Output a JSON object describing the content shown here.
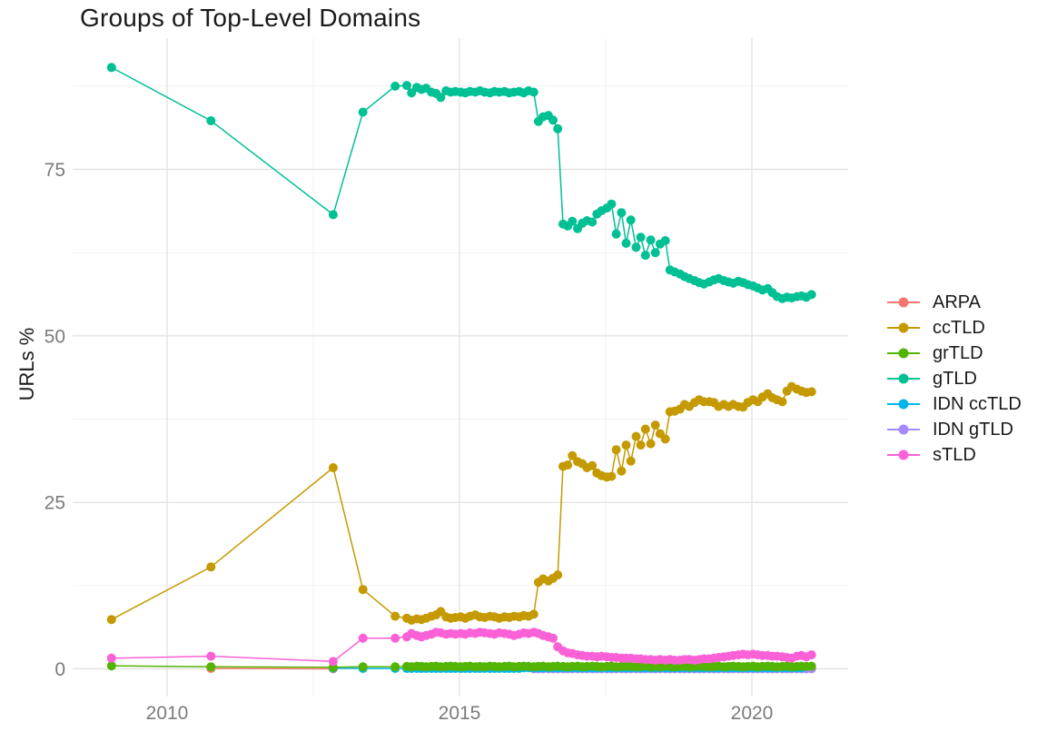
{
  "chart_data": {
    "type": "line",
    "title": "Groups of Top-Level Domains",
    "ylabel": "URLs %",
    "xlabel": "",
    "legend_position": "right",
    "grid": true,
    "background_color": "#FFFFFF",
    "major_grid_color": "#E3E3E3",
    "minor_grid_color": "#F1F1F1",
    "tick_label_color": "#7B7B7B",
    "text_color": "#1A1A1A",
    "x_axis": {
      "ticks": [
        2010,
        2015,
        2020
      ],
      "minor_ticks": [
        2012.5,
        2017.5
      ],
      "range": [
        2008.5,
        2021.6
      ]
    },
    "y_axis": {
      "ticks": [
        0,
        25,
        50,
        75
      ],
      "minor_ticks": [
        12.5,
        37.5,
        62.5,
        87.5
      ],
      "range": [
        -4.5,
        94.8
      ]
    },
    "x": [
      2009.05,
      2010.75,
      2012.84,
      2013.35,
      2013.9,
      2014.1,
      2014.18,
      2014.27,
      2014.35,
      2014.43,
      2014.52,
      2014.6,
      2014.68,
      2014.77,
      2014.85,
      2014.93,
      2015.02,
      2015.1,
      2015.18,
      2015.27,
      2015.35,
      2015.43,
      2015.52,
      2015.6,
      2015.68,
      2015.77,
      2015.85,
      2015.93,
      2016.02,
      2016.1,
      2016.18,
      2016.27,
      2016.35,
      2016.43,
      2016.52,
      2016.6,
      2016.68,
      2016.77,
      2016.85,
      2016.93,
      2017.02,
      2017.1,
      2017.18,
      2017.27,
      2017.35,
      2017.43,
      2017.52,
      2017.6,
      2017.68,
      2017.77,
      2017.85,
      2017.93,
      2018.02,
      2018.1,
      2018.18,
      2018.27,
      2018.35,
      2018.43,
      2018.52,
      2018.6,
      2018.68,
      2018.77,
      2018.85,
      2018.93,
      2019.02,
      2019.1,
      2019.18,
      2019.27,
      2019.35,
      2019.43,
      2019.52,
      2019.6,
      2019.68,
      2019.77,
      2019.85,
      2019.93,
      2020.02,
      2020.1,
      2020.18,
      2020.27,
      2020.35,
      2020.43,
      2020.52,
      2020.6,
      2020.68,
      2020.77,
      2020.85,
      2020.93,
      2021.02
    ],
    "series": [
      {
        "name": "ARPA",
        "color": "#F8766D",
        "start": 1,
        "values": [
          0.05,
          0.0
        ]
      },
      {
        "name": "ccTLD",
        "color": "#C49A00",
        "start": 0,
        "values": [
          7.4,
          15.3,
          30.2,
          11.9,
          7.9,
          7.6,
          7.3,
          7.5,
          7.4,
          7.6,
          7.9,
          8.1,
          8.6,
          7.8,
          7.6,
          7.7,
          7.8,
          7.6,
          7.9,
          8.1,
          7.8,
          7.7,
          7.9,
          7.8,
          7.6,
          7.8,
          7.7,
          7.9,
          7.8,
          8.0,
          7.9,
          8.2,
          13.0,
          13.5,
          13.2,
          13.6,
          14.1,
          30.4,
          30.6,
          32.0,
          31.1,
          30.8,
          30.2,
          30.5,
          29.4,
          29.0,
          28.8,
          28.9,
          32.9,
          29.7,
          33.6,
          31.2,
          34.9,
          33.6,
          36.0,
          33.8,
          36.6,
          35.3,
          34.5,
          38.6,
          38.7,
          39.0,
          39.7,
          39.4,
          40.0,
          40.4,
          40.1,
          40.1,
          40.0,
          39.4,
          39.7,
          39.4,
          39.7,
          39.4,
          39.3,
          40.0,
          40.4,
          40.1,
          40.8,
          41.3,
          40.7,
          40.4,
          40.1,
          41.7,
          42.4,
          42.0,
          41.7,
          41.5,
          41.6
        ]
      },
      {
        "name": "grTLD",
        "color": "#53B400",
        "start": 0,
        "values": [
          0.45,
          0.3,
          0.25,
          0.3,
          0.3,
          0.35,
          0.3,
          0.4,
          0.35,
          0.3,
          0.35,
          0.4,
          0.3,
          0.35,
          0.4,
          0.35,
          0.3,
          0.35,
          0.4,
          0.3,
          0.35,
          0.3,
          0.4,
          0.35,
          0.3,
          0.35,
          0.4,
          0.3,
          0.35,
          0.4,
          0.35,
          0.3,
          0.35,
          0.4,
          0.3,
          0.35,
          0.4,
          0.35,
          0.3,
          0.35,
          0.4,
          0.3,
          0.35,
          0.4,
          0.35,
          0.3,
          0.35,
          0.4,
          0.3,
          0.35,
          0.4,
          0.35,
          0.3,
          0.35,
          0.4,
          0.3,
          0.35,
          0.3,
          0.4,
          0.35,
          0.3,
          0.35,
          0.4,
          0.3,
          0.35,
          0.4,
          0.35,
          0.3,
          0.35,
          0.4,
          0.3,
          0.35,
          0.4,
          0.35,
          0.3,
          0.35,
          0.4,
          0.3,
          0.35,
          0.4,
          0.35,
          0.3,
          0.35,
          0.4,
          0.3,
          0.35,
          0.4,
          0.35,
          0.4
        ]
      },
      {
        "name": "gTLD",
        "color": "#00C094",
        "start": 0,
        "values": [
          90.3,
          82.3,
          68.2,
          83.6,
          87.5,
          87.6,
          86.5,
          87.3,
          87.0,
          87.2,
          86.6,
          86.4,
          85.8,
          86.8,
          86.6,
          86.7,
          86.6,
          86.5,
          86.7,
          86.6,
          86.8,
          86.6,
          86.5,
          86.7,
          86.6,
          86.7,
          86.5,
          86.6,
          86.7,
          86.5,
          86.8,
          86.6,
          82.2,
          82.9,
          83.1,
          82.4,
          81.1,
          66.8,
          66.5,
          67.2,
          66.1,
          66.9,
          67.3,
          67.1,
          68.3,
          68.8,
          69.2,
          69.8,
          65.3,
          68.5,
          63.9,
          67.4,
          63.3,
          64.8,
          62.1,
          64.4,
          62.5,
          63.8,
          64.3,
          59.9,
          59.6,
          59.3,
          58.9,
          58.6,
          58.3,
          58.0,
          57.8,
          58.1,
          58.4,
          58.6,
          58.3,
          58.1,
          57.9,
          58.2,
          58.0,
          57.7,
          57.5,
          57.2,
          56.9,
          57.1,
          56.5,
          55.9,
          55.6,
          55.8,
          55.7,
          55.9,
          56.0,
          55.8,
          56.2
        ]
      },
      {
        "name": "IDN ccTLD",
        "color": "#00B6EB",
        "start": 2,
        "values": [
          0.1,
          0.05,
          0.05,
          0.05,
          0.05,
          0.05,
          0.05,
          0.05,
          0.05,
          0.05,
          0.05,
          0.05,
          0.05,
          0.05,
          0.05,
          0.05,
          0.05,
          0.05,
          0.05,
          0.05,
          0.05,
          0.05,
          0.05,
          0.05,
          0.05,
          0.05,
          0.05,
          0.15,
          0.15,
          0.15,
          0.15,
          0.15,
          0.15,
          0.15,
          0.15,
          0.15,
          0.15,
          0.15,
          0.15,
          0.15,
          0.15,
          0.15,
          0.15,
          0.15,
          0.15,
          0.15,
          0.15,
          0.15,
          0.15,
          0.15,
          0.15,
          0.15,
          0.15,
          0.15,
          0.15,
          0.15,
          0.15,
          0.15,
          0.15,
          0.15,
          0.15,
          0.15,
          0.15,
          0.15,
          0.15,
          0.15,
          0.15,
          0.15,
          0.15,
          0.15,
          0.15,
          0.15,
          0.15,
          0.15,
          0.15,
          0.15,
          0.15,
          0.15,
          0.15,
          0.15,
          0.15,
          0.15,
          0.15,
          0.15,
          0.15
        ]
      },
      {
        "name": "IDN gTLD",
        "color": "#A58AFF",
        "start": 31,
        "values": [
          0.0,
          0.0,
          0.0,
          0.0,
          0.0,
          0.0,
          0.0,
          0.0,
          0.0,
          0.0,
          0.0,
          0.0,
          0.0,
          0.0,
          0.0,
          0.0,
          0.0,
          0.0,
          0.0,
          0.0,
          0.0,
          0.0,
          0.0,
          0.0,
          0.0,
          0.0,
          0.0,
          0.0,
          0.0,
          0.0,
          0.0,
          0.0,
          0.0,
          0.0,
          0.0,
          0.0,
          0.0,
          0.0,
          0.0,
          0.0,
          0.0,
          0.0,
          0.0,
          0.0,
          0.0,
          0.0,
          0.0,
          0.0,
          0.0,
          0.0,
          0.0,
          0.0,
          0.0,
          0.0,
          0.0,
          0.0,
          0.0,
          0.0
        ]
      },
      {
        "name": "sTLD",
        "color": "#FB61D7",
        "start": 0,
        "values": [
          1.6,
          1.9,
          1.1,
          4.6,
          4.6,
          4.8,
          5.3,
          5.0,
          4.8,
          5.0,
          5.2,
          5.5,
          5.4,
          5.2,
          5.3,
          5.2,
          5.3,
          5.2,
          5.4,
          5.3,
          5.5,
          5.4,
          5.3,
          5.2,
          5.4,
          5.3,
          5.2,
          5.0,
          5.2,
          5.4,
          5.3,
          5.5,
          5.3,
          5.0,
          4.8,
          4.6,
          3.3,
          2.7,
          2.4,
          2.3,
          2.1,
          2.0,
          1.9,
          1.9,
          1.8,
          1.9,
          1.8,
          1.7,
          1.7,
          1.6,
          1.6,
          1.6,
          1.5,
          1.5,
          1.4,
          1.4,
          1.3,
          1.4,
          1.3,
          1.4,
          1.3,
          1.3,
          1.4,
          1.4,
          1.3,
          1.4,
          1.5,
          1.5,
          1.6,
          1.7,
          1.8,
          1.9,
          2.0,
          2.1,
          2.2,
          2.1,
          2.2,
          2.1,
          2.0,
          2.0,
          1.9,
          1.9,
          1.8,
          1.7,
          1.6,
          1.9,
          2.0,
          1.8,
          2.1
        ]
      }
    ]
  }
}
